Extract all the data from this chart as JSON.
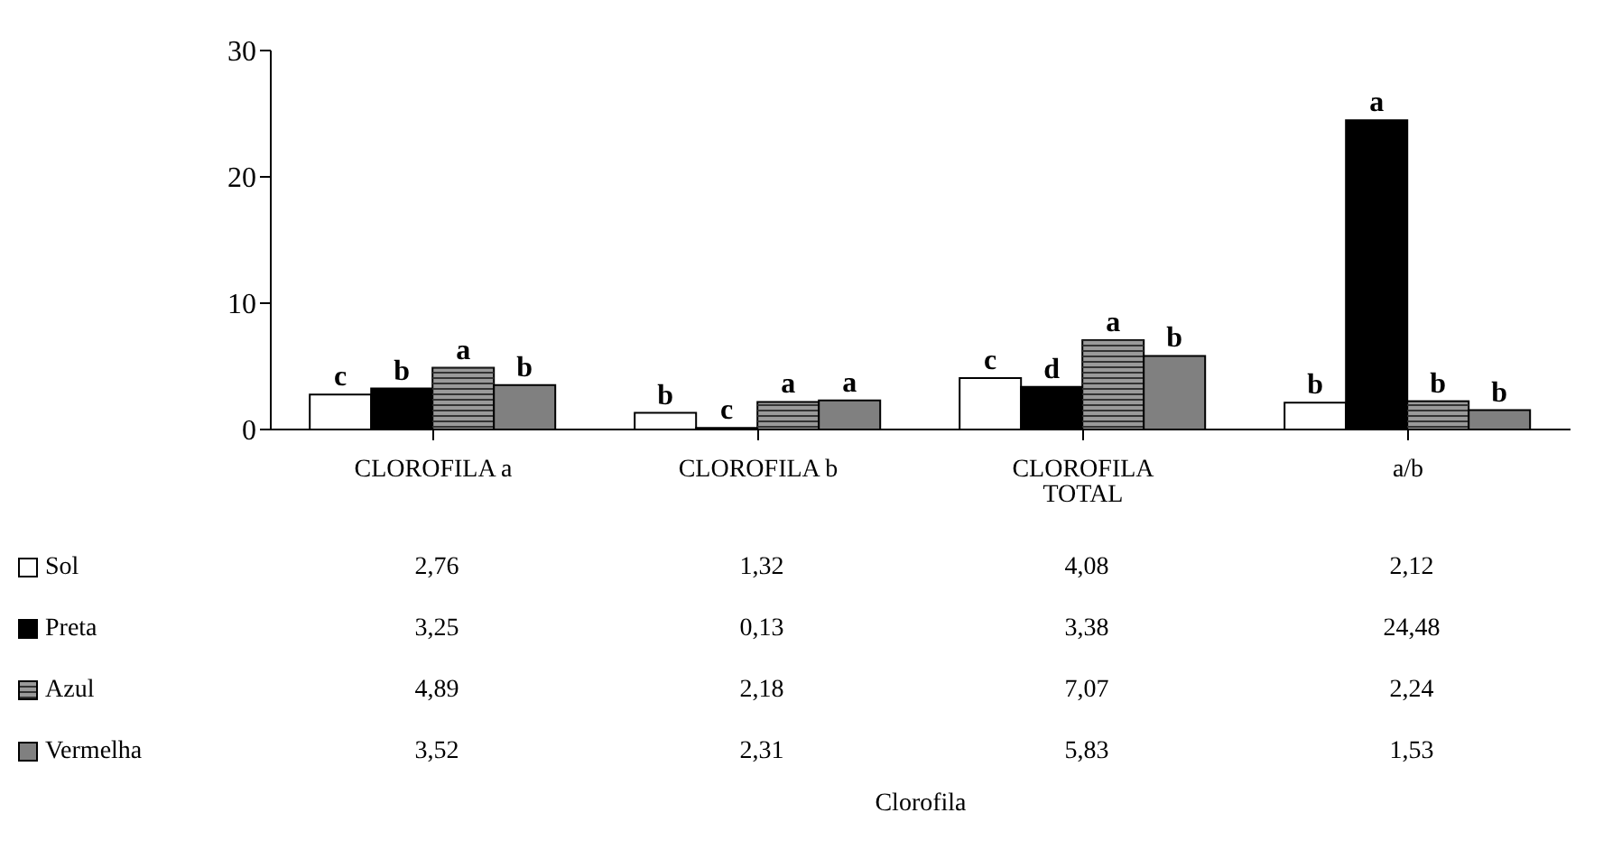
{
  "chart_data": {
    "type": "bar",
    "categories": [
      "CLOROFILA a",
      "CLOROFILA b",
      "CLOROFILA TOTAL",
      "a/b"
    ],
    "series": [
      {
        "name": "Sol",
        "color": "#ffffff",
        "values": [
          2.76,
          1.32,
          4.08,
          2.12
        ],
        "value_labels": [
          "2,76",
          "1,32",
          "4,08",
          "2,12"
        ]
      },
      {
        "name": "Preta",
        "color": "#000000",
        "values": [
          3.25,
          0.13,
          3.38,
          24.48
        ],
        "value_labels": [
          "3,25",
          "0,13",
          "3,38",
          "24,48"
        ]
      },
      {
        "name": "Azul",
        "color": "#9a9a9a",
        "values": [
          4.89,
          2.18,
          7.07,
          2.24
        ],
        "value_labels": [
          "4,89",
          "2,18",
          "7,07",
          "2,24"
        ]
      },
      {
        "name": "Vermelha",
        "color": "#808080",
        "values": [
          3.52,
          2.31,
          5.83,
          1.53
        ],
        "value_labels": [
          "3,52",
          "2,31",
          "5,83",
          "1,53"
        ]
      }
    ],
    "ylim": [
      0,
      30
    ],
    "yticks": [
      0,
      10,
      20,
      30
    ],
    "grid": false,
    "legend": "bottom",
    "annotations": [
      "Clorofila",
      {
        "text": "c",
        "x": "CLOROFILA a",
        "y": 2.76
      },
      {
        "text": "b",
        "x": "CLOROFILA a",
        "y": 3.25
      },
      {
        "text": "a",
        "x": "CLOROFILA a",
        "y": 4.89
      },
      {
        "text": "b",
        "x": "CLOROFILA a",
        "y": 3.52
      },
      {
        "text": "b",
        "x": "CLOROFILA b",
        "y": 1.32
      },
      {
        "text": "c",
        "x": "CLOROFILA b",
        "y": 0.13
      },
      {
        "text": "a",
        "x": "CLOROFILA b",
        "y": 2.18
      },
      {
        "text": "a",
        "x": "CLOROFILA b",
        "y": 2.31
      },
      {
        "text": "c",
        "x": "CLOROFILA TOTAL",
        "y": 4.08
      },
      {
        "text": "d",
        "x": "CLOROFILA TOTAL",
        "y": 3.38
      },
      {
        "text": "a",
        "x": "CLOROFILA TOTAL",
        "y": 7.07
      },
      {
        "text": "b",
        "x": "CLOROFILA TOTAL",
        "y": 5.83
      },
      {
        "text": "b",
        "x": "a/b",
        "y": 2.12
      },
      {
        "text": "a",
        "x": "a/b",
        "y": 24.48
      },
      {
        "text": "b",
        "x": "a/b",
        "y": 2.24
      },
      {
        "text": "b",
        "x": "a/b",
        "y": 1.53
      }
    ]
  }
}
